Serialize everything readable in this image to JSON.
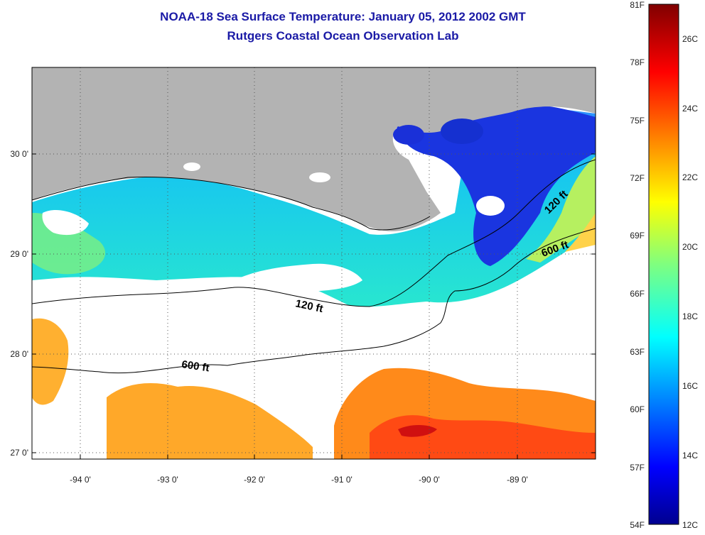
{
  "title": {
    "line1": "NOAA-18 Sea Surface Temperature:  January 05, 2012 2002 GMT",
    "line2": "Rutgers Coastal Ocean Observation Lab"
  },
  "map": {
    "lat_labels": [
      "30 0'",
      "29 0'",
      "28 0'",
      "27 0'"
    ],
    "lon_labels": [
      "-94 0'",
      "-93 0'",
      "-92 0'",
      "-91 0'",
      "-90 0'",
      "-89 0'"
    ],
    "contours": [
      {
        "label": "120 ft"
      },
      {
        "label": "600 ft"
      }
    ],
    "contour_annotations": [
      "120 ft",
      "600 ft",
      "120 ft",
      "600 ft"
    ],
    "colors": {
      "land": "#b3b3b3",
      "cloud": "#ffffff"
    }
  },
  "colorbar": {
    "f_labels": [
      "81F",
      "78F",
      "75F",
      "72F",
      "69F",
      "66F",
      "63F",
      "60F",
      "57F",
      "54F"
    ],
    "c_labels": [
      "26C",
      "24C",
      "22C",
      "20C",
      "18C",
      "16C",
      "14C",
      "12C"
    ],
    "range_c": [
      12,
      27
    ]
  }
}
